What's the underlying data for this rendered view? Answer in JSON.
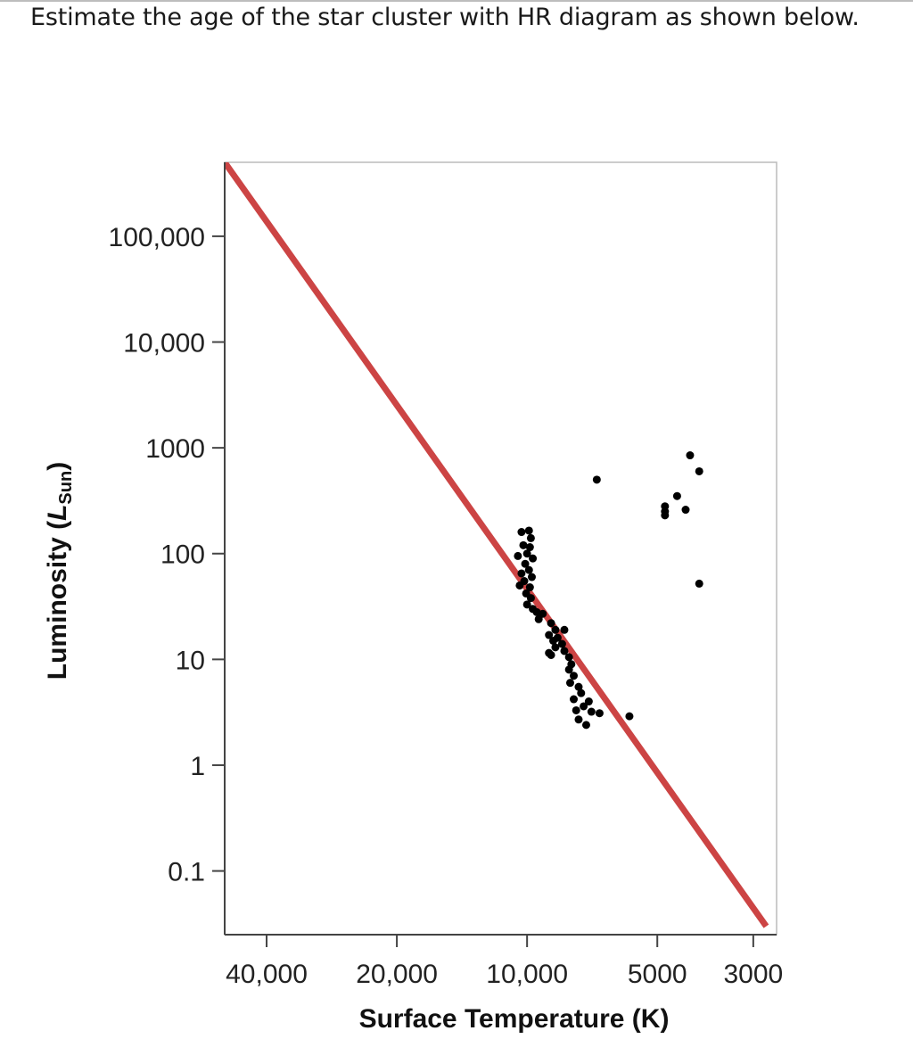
{
  "question": {
    "text": "Estimate the age of the star cluster with HR diagram as shown below."
  },
  "colors": {
    "line": "#cc4444",
    "points": "#000000",
    "axis": "#444444",
    "frame": "#bbbbbb"
  },
  "chart_data": {
    "type": "scatter",
    "title": "",
    "xlabel": "Surface Temperature (K)",
    "ylabel_main": "Luminosity (",
    "ylabel_italic": "L",
    "ylabel_sub": "Sun",
    "ylabel_close": ")",
    "x_scale": "log, reversed",
    "y_scale": "log",
    "xlim": [
      50000,
      2650
    ],
    "ylim": [
      0.025,
      500000
    ],
    "x_ticks": [
      {
        "value": 40000,
        "label": "40,000"
      },
      {
        "value": 20000,
        "label": "20,000"
      },
      {
        "value": 10000,
        "label": "10,000"
      },
      {
        "value": 5000,
        "label": "5000"
      },
      {
        "value": 3000,
        "label": "3000"
      }
    ],
    "y_ticks": [
      {
        "value": 100000,
        "label": "100,000"
      },
      {
        "value": 10000,
        "label": "10,000"
      },
      {
        "value": 1000,
        "label": "1000"
      },
      {
        "value": 100,
        "label": "100"
      },
      {
        "value": 10,
        "label": "10"
      },
      {
        "value": 1,
        "label": "1"
      },
      {
        "value": 0.1,
        "label": "0.1"
      }
    ],
    "line": {
      "description": "main sequence",
      "points": [
        [
          50000,
          500000
        ],
        [
          2800,
          0.03
        ]
      ]
    },
    "series": [
      {
        "points": [
          [
            10300,
            160
          ],
          [
            9900,
            165
          ],
          [
            9800,
            140
          ],
          [
            10200,
            120
          ],
          [
            9850,
            115
          ],
          [
            10500,
            95
          ],
          [
            10000,
            100
          ],
          [
            9700,
            90
          ],
          [
            10100,
            80
          ],
          [
            9900,
            70
          ],
          [
            10300,
            65
          ],
          [
            9750,
            60
          ],
          [
            10150,
            55
          ],
          [
            10400,
            50
          ],
          [
            9850,
            48
          ],
          [
            10050,
            42
          ],
          [
            9800,
            38
          ],
          [
            10000,
            33
          ],
          [
            9700,
            30
          ],
          [
            9500,
            28
          ],
          [
            9200,
            27
          ],
          [
            9400,
            24
          ],
          [
            8800,
            22
          ],
          [
            8600,
            19
          ],
          [
            8200,
            19
          ],
          [
            8900,
            17
          ],
          [
            8500,
            16
          ],
          [
            8700,
            15
          ],
          [
            8300,
            14
          ],
          [
            8600,
            13
          ],
          [
            8200,
            12
          ],
          [
            8800,
            11
          ],
          [
            8900,
            11.5
          ],
          [
            8000,
            10.5
          ],
          [
            7900,
            9
          ],
          [
            8000,
            8
          ],
          [
            7800,
            7
          ],
          [
            7950,
            6
          ],
          [
            7600,
            5.5
          ],
          [
            7500,
            4.8
          ],
          [
            7800,
            4.2
          ],
          [
            7200,
            4.0
          ],
          [
            7400,
            3.6
          ],
          [
            7700,
            3.3
          ],
          [
            7100,
            3.2
          ],
          [
            7600,
            2.7
          ],
          [
            7300,
            2.4
          ],
          [
            6800,
            3.1
          ],
          [
            5800,
            2.9
          ],
          [
            6900,
            500
          ],
          [
            4800,
            280
          ],
          [
            4800,
            250
          ],
          [
            4800,
            230
          ],
          [
            4500,
            350
          ],
          [
            4200,
            850
          ],
          [
            4000,
            600
          ],
          [
            4300,
            260
          ],
          [
            4000,
            52
          ]
        ]
      }
    ]
  }
}
